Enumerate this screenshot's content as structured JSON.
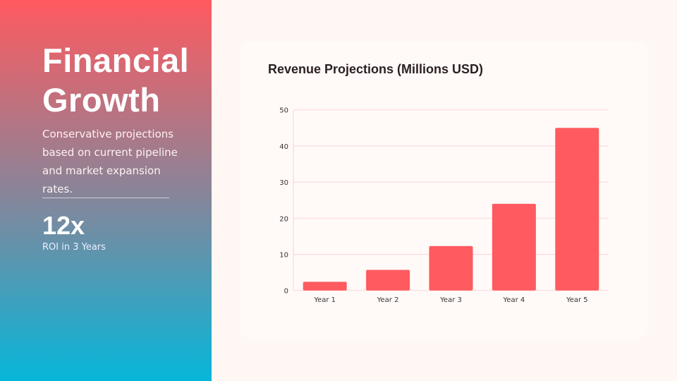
{
  "sidebar": {
    "title": "Financial Growth",
    "description": "Conservative projections based on current pipeline and market expansion rates.",
    "stat_value": "12x",
    "stat_label": "ROI in 3 Years"
  },
  "colors": {
    "bar": "#ff5a5f",
    "grid": "#fdd9d9",
    "accent_top": "#ff5a5f",
    "accent_bottom": "#06b6d9"
  },
  "chart_data": {
    "type": "bar",
    "title": "Revenue Projections (Millions USD)",
    "categories": [
      "Year 1",
      "Year 2",
      "Year 3",
      "Year 4",
      "Year 5"
    ],
    "values": [
      2.4,
      5.7,
      12.3,
      24,
      45
    ],
    "ylim": [
      0,
      50
    ],
    "yticks": [
      "0",
      "10",
      "20",
      "30",
      "40",
      "50"
    ],
    "grid": true,
    "legend": "none"
  }
}
